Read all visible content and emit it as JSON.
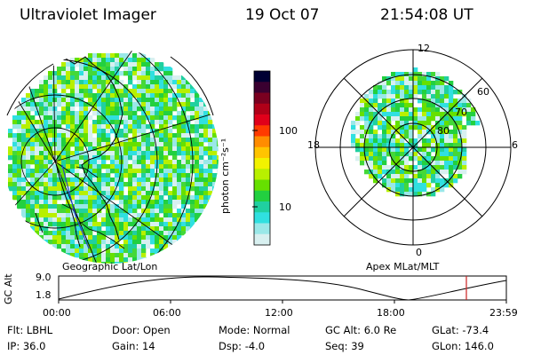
{
  "header": {
    "instrument": "Ultraviolet Imager",
    "date": "19 Oct 07",
    "time": "21:54:08 UT"
  },
  "colorbar": {
    "unit_label": "photon cm⁻²s⁻¹",
    "tick_labels": [
      "100",
      "10"
    ],
    "colors": [
      "#000033",
      "#3a0030",
      "#7a0020",
      "#b00018",
      "#e0001a",
      "#ff3a00",
      "#ff8c00",
      "#ffc400",
      "#f2f200",
      "#b8f000",
      "#66e000",
      "#22d040",
      "#20d0a0",
      "#30e0e0",
      "#9ae8e8",
      "#d8f0f0"
    ]
  },
  "panels": {
    "left_caption": "Geographic Lat/Lon",
    "right_caption": "Apex MLat/MLT",
    "mlt_labels": [
      "12",
      "18",
      "6",
      "0"
    ],
    "mlat_labels": [
      "60",
      "70",
      "80"
    ]
  },
  "altitude_plot": {
    "ylabel": "GC Alt",
    "y_ticks": [
      "9.0",
      "1.8"
    ],
    "x_ticks": [
      "00:00",
      "06:00",
      "12:00",
      "18:00",
      "23:59"
    ],
    "marker_color": "#cc2222"
  },
  "info": [
    {
      "label": "Flt:",
      "value": "LBHL"
    },
    {
      "label": "Door:",
      "value": "Open"
    },
    {
      "label": "Mode:",
      "value": "Normal"
    },
    {
      "label": "GC Alt:",
      "value": "6.0 Re"
    },
    {
      "label": "GLat:",
      "value": "-73.4"
    },
    {
      "label": "IP:",
      "value": "36.0"
    },
    {
      "label": "Gain:",
      "value": "14"
    },
    {
      "label": "Dsp:",
      "value": "-4.0"
    },
    {
      "label": "Seq:",
      "value": "39"
    },
    {
      "label": "GLon:",
      "value": "146.0"
    }
  ]
}
